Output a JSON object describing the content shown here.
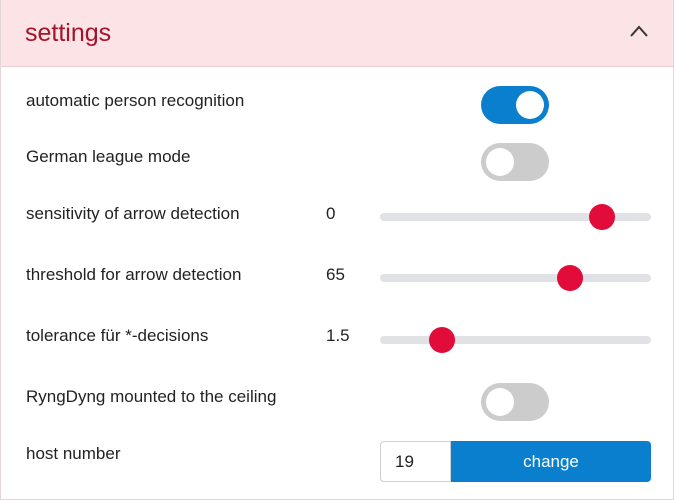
{
  "header": {
    "title": "settings",
    "collapse_icon": "chevron-up-icon"
  },
  "settings": {
    "auto_person_recognition": {
      "label": "automatic person recognition",
      "enabled": true
    },
    "german_league_mode": {
      "label": "German league mode",
      "enabled": false
    },
    "arrow_sensitivity": {
      "label": "sensitivity of arrow detection",
      "value": "0",
      "position_fraction": 0.82
    },
    "arrow_threshold": {
      "label": "threshold for arrow detection",
      "value": "65",
      "position_fraction": 0.7
    },
    "tolerance": {
      "label": "tolerance für *-decisions",
      "value": "1.5",
      "position_fraction": 0.23
    },
    "ceiling_mounted": {
      "label": "RyngDyng mounted to the ceiling",
      "enabled": false
    },
    "host_number": {
      "label": "host number",
      "value": "19",
      "button_label": "change"
    }
  },
  "colors": {
    "accent": "#0a7fcd",
    "slider_thumb": "#e20c3b",
    "header_bg": "#fbe3e6",
    "header_text": "#a3142b",
    "toggle_off": "#cccccc"
  }
}
